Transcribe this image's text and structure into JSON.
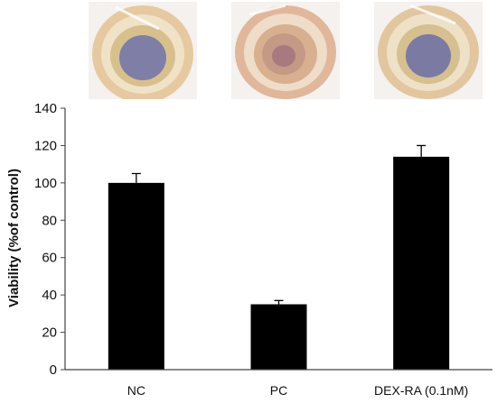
{
  "chart_data": {
    "type": "bar",
    "title": "",
    "xlabel": "",
    "ylabel": "Viability (%of control)",
    "categories": [
      "NC",
      "PC",
      "DEX-RA (0.1nM)"
    ],
    "values": [
      100,
      35,
      114
    ],
    "errors": [
      5,
      2,
      6
    ],
    "ylim": [
      0,
      140
    ],
    "yticks": [
      0,
      20,
      40,
      60,
      80,
      100,
      120,
      140
    ],
    "grid": false,
    "legend": "none",
    "bar_color": "#000000"
  },
  "photos": [
    {
      "name": "well-photo-nc",
      "center_color": "#7f7ea6",
      "rim_color": "#e3b989"
    },
    {
      "name": "well-photo-pc",
      "center_color": "#c49a86",
      "rim_color": "#d9a88d"
    },
    {
      "name": "well-photo-dex-ra",
      "center_color": "#7a7aa2",
      "rim_color": "#dcbc8e"
    }
  ]
}
